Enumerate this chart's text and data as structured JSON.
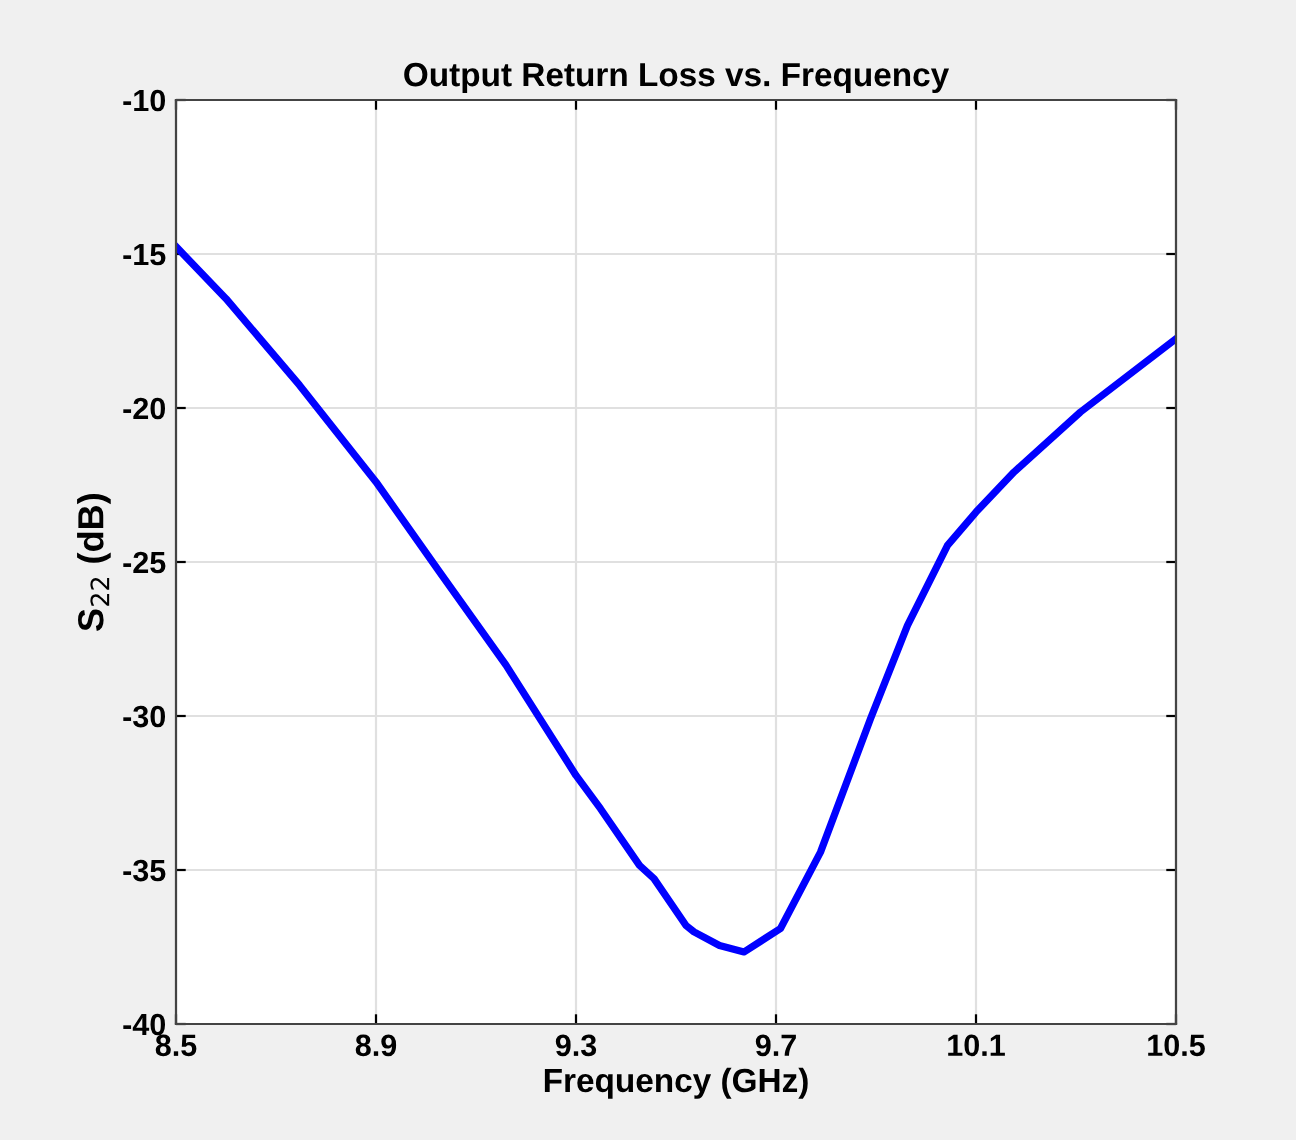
{
  "chart_data": {
    "type": "line",
    "title": "Output Return Loss vs. Frequency",
    "xlabel": "Frequency (GHz)",
    "ylabel": "S$_{22}$ (dB)",
    "x": [
      8.5,
      8.6,
      8.747,
      8.9,
      9.027,
      9.16,
      9.3,
      9.349,
      9.427,
      9.456,
      9.52,
      9.536,
      9.587,
      9.636,
      9.709,
      9.789,
      9.889,
      9.963,
      10.043,
      10.1,
      10.176,
      10.309,
      10.5
    ],
    "series": [
      {
        "color": "#0000ff",
        "values": [
          -14.76,
          -16.45,
          -19.26,
          -22.4,
          -25.32,
          -28.35,
          -31.93,
          -33.01,
          -34.85,
          -35.28,
          -36.8,
          -37.01,
          -37.45,
          -37.66,
          -36.9,
          -34.42,
          -30.09,
          -27.06,
          -24.46,
          -23.38,
          -22.08,
          -20.13,
          -17.75
        ]
      }
    ],
    "xlim": [
      8.5,
      10.5
    ],
    "xticks": [
      8.5,
      8.9,
      9.3,
      9.7,
      10.1,
      10.5
    ],
    "ylim": [
      -40,
      -10
    ],
    "yticks": [
      -40,
      -35,
      -30,
      -25,
      -20,
      -15,
      -10
    ],
    "grid": true,
    "marker": "none",
    "line_style": "solid"
  }
}
